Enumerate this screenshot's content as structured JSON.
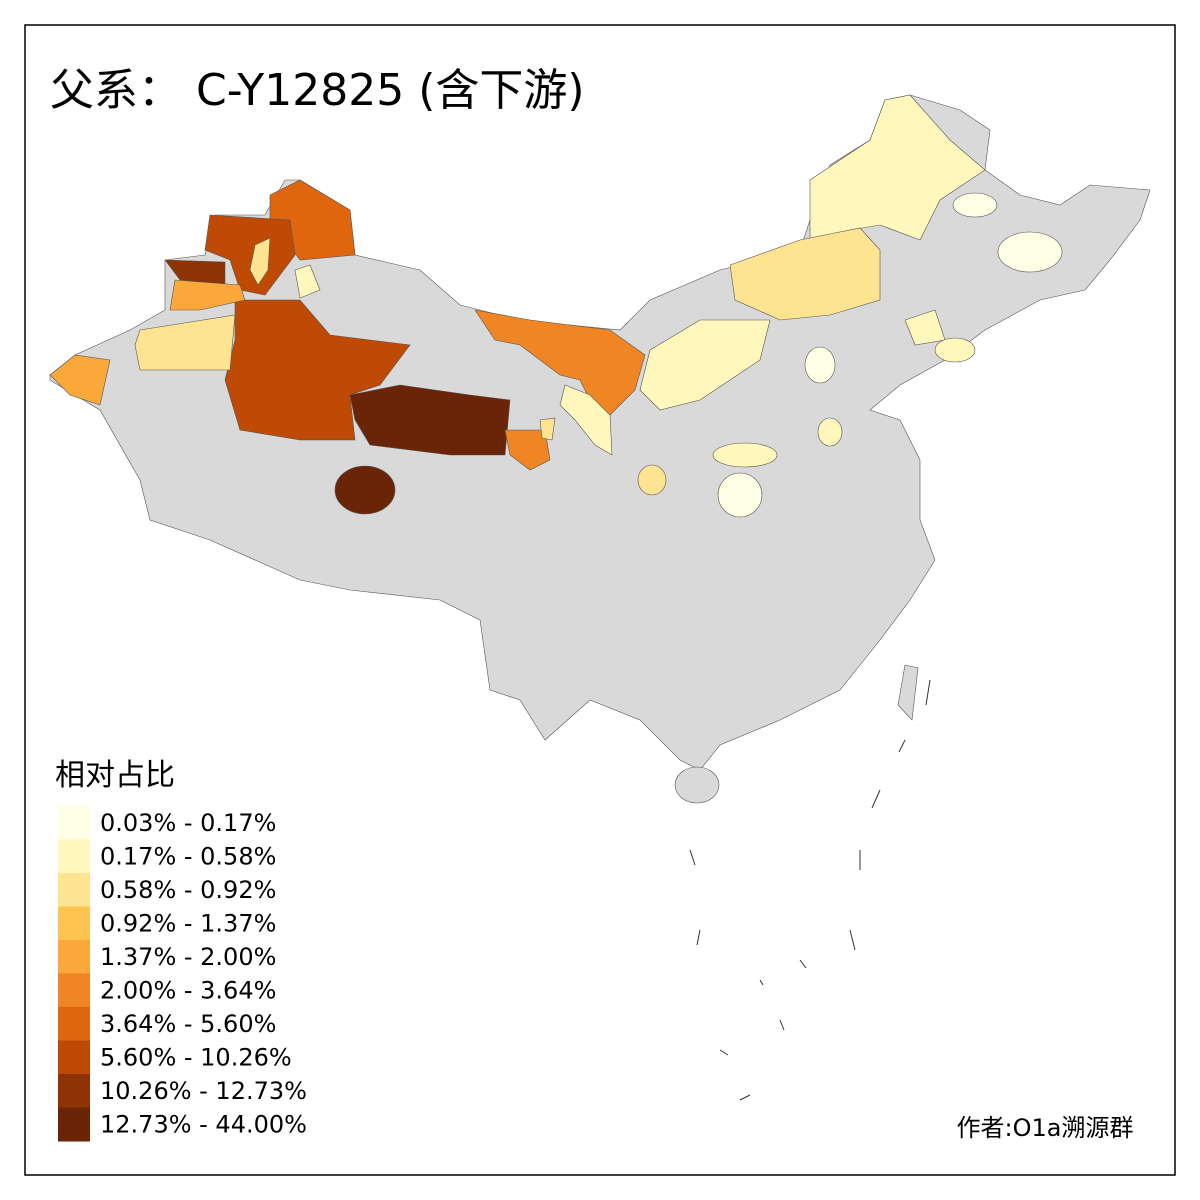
{
  "title": "父系： C-Y12825 (含下游)",
  "legend": {
    "title": "相对占比",
    "items": [
      {
        "label": "0.03% - 0.17%",
        "color": "#ffffe5"
      },
      {
        "label": "0.17% - 0.58%",
        "color": "#fff7bc"
      },
      {
        "label": "0.58% - 0.92%",
        "color": "#fee391"
      },
      {
        "label": "0.92% - 1.37%",
        "color": "#fec44f"
      },
      {
        "label": "1.37% - 2.00%",
        "color": "#fba83a"
      },
      {
        "label": "2.00% - 3.64%",
        "color": "#f08523"
      },
      {
        "label": "3.64% - 5.60%",
        "color": "#e0650f"
      },
      {
        "label": "5.60% - 10.26%",
        "color": "#bf4a04"
      },
      {
        "label": "10.26% - 12.73%",
        "color": "#8e3304"
      },
      {
        "label": "12.73% - 44.00%",
        "color": "#6a2506"
      }
    ]
  },
  "credit": "作者:O1a溯源群"
}
